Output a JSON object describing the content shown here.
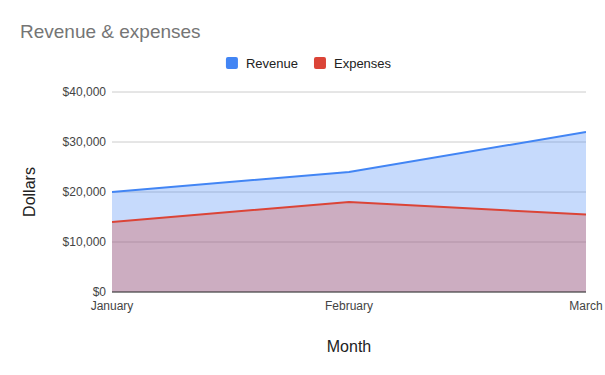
{
  "chart_data": {
    "type": "area",
    "title": "Revenue & expenses",
    "x_label": "Month",
    "y_label": "Dollars",
    "categories": [
      "January",
      "February",
      "March"
    ],
    "series": [
      {
        "name": "Revenue",
        "color": "#4285f4",
        "values": [
          20000,
          24000,
          32000
        ]
      },
      {
        "name": "Expenses",
        "color": "#db4437",
        "values": [
          14000,
          18000,
          15500
        ]
      }
    ],
    "ylim": [
      0,
      40000
    ],
    "yticks": [
      {
        "value": 0,
        "label": "$0"
      },
      {
        "value": 10000,
        "label": "$10,000"
      },
      {
        "value": 20000,
        "label": "$20,000"
      },
      {
        "value": 30000,
        "label": "$30,000"
      },
      {
        "value": 40000,
        "label": "$40,000"
      }
    ],
    "grid": true,
    "legend": "top"
  }
}
